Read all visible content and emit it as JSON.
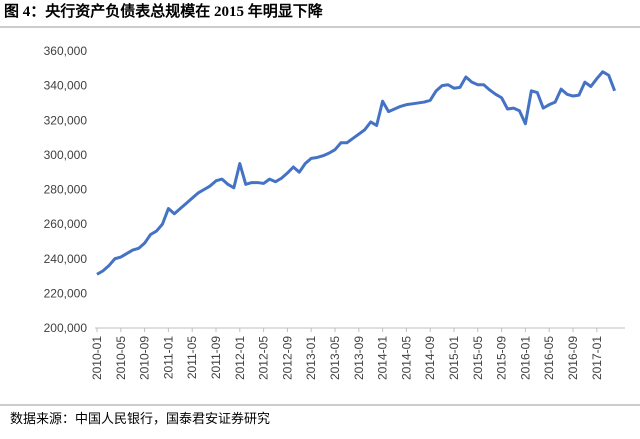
{
  "chart_data": {
    "type": "line",
    "title": "图 4：央行资产负债表总规模在 2015 年明显下降",
    "source": "数据来源：中国人民银行，国泰君安证券研究",
    "categories": [
      "2010-01",
      null,
      null,
      null,
      "2010-05",
      null,
      null,
      null,
      "2010-09",
      null,
      null,
      null,
      "2011-01",
      null,
      null,
      null,
      "2011-05",
      null,
      null,
      null,
      "2011-09",
      null,
      null,
      null,
      "2012-01",
      null,
      null,
      null,
      "2012-05",
      null,
      null,
      null,
      "2012-09",
      null,
      null,
      null,
      "2013-01",
      null,
      null,
      null,
      "2013-05",
      null,
      null,
      null,
      "2013-09",
      null,
      null,
      null,
      "2014-01",
      null,
      null,
      null,
      "2014-05",
      null,
      null,
      null,
      "2014-09",
      null,
      null,
      null,
      "2015-01",
      null,
      null,
      null,
      "2015-05",
      null,
      null,
      null,
      "2015-09",
      null,
      null,
      null,
      "2016-01",
      null,
      null,
      null,
      "2016-05",
      null,
      null,
      null,
      "2016-09",
      null,
      null,
      null,
      "2017-01",
      null,
      null,
      null
    ],
    "values": [
      231000,
      233000,
      236000,
      240000,
      241000,
      243000,
      245000,
      246000,
      249000,
      254000,
      256000,
      260000,
      269000,
      266000,
      269000,
      272000,
      275000,
      278000,
      280000,
      282000,
      285000,
      286000,
      283000,
      281000,
      295000,
      283000,
      284000,
      284000,
      283500,
      286000,
      284500,
      286500,
      289500,
      293000,
      290000,
      295000,
      298000,
      298500,
      299500,
      301000,
      303000,
      307000,
      307000,
      309500,
      312000,
      314500,
      319000,
      317000,
      331000,
      325000,
      326500,
      328000,
      329000,
      329500,
      330000,
      330500,
      331500,
      337000,
      340000,
      340500,
      338500,
      339000,
      345000,
      342000,
      340500,
      340500,
      337500,
      335000,
      333000,
      326500,
      327000,
      325500,
      318000,
      337000,
      336000,
      327000,
      329000,
      330500,
      338000,
      335000,
      334000,
      334500,
      342000,
      339500,
      344000,
      348000,
      346000,
      337000
    ],
    "color": "#4472c4",
    "ylim": [
      200000,
      360000
    ],
    "yticks": [
      {
        "value": 200000,
        "label": "200,000"
      },
      {
        "value": 220000,
        "label": "220,000"
      },
      {
        "value": 240000,
        "label": "240,000"
      },
      {
        "value": 260000,
        "label": "260,000"
      },
      {
        "value": 280000,
        "label": "280,000"
      },
      {
        "value": 300000,
        "label": "300,000"
      },
      {
        "value": 320000,
        "label": "320,000"
      },
      {
        "value": 340000,
        "label": "340,000"
      },
      {
        "value": 360000,
        "label": "360,000"
      }
    ],
    "grid": false
  }
}
